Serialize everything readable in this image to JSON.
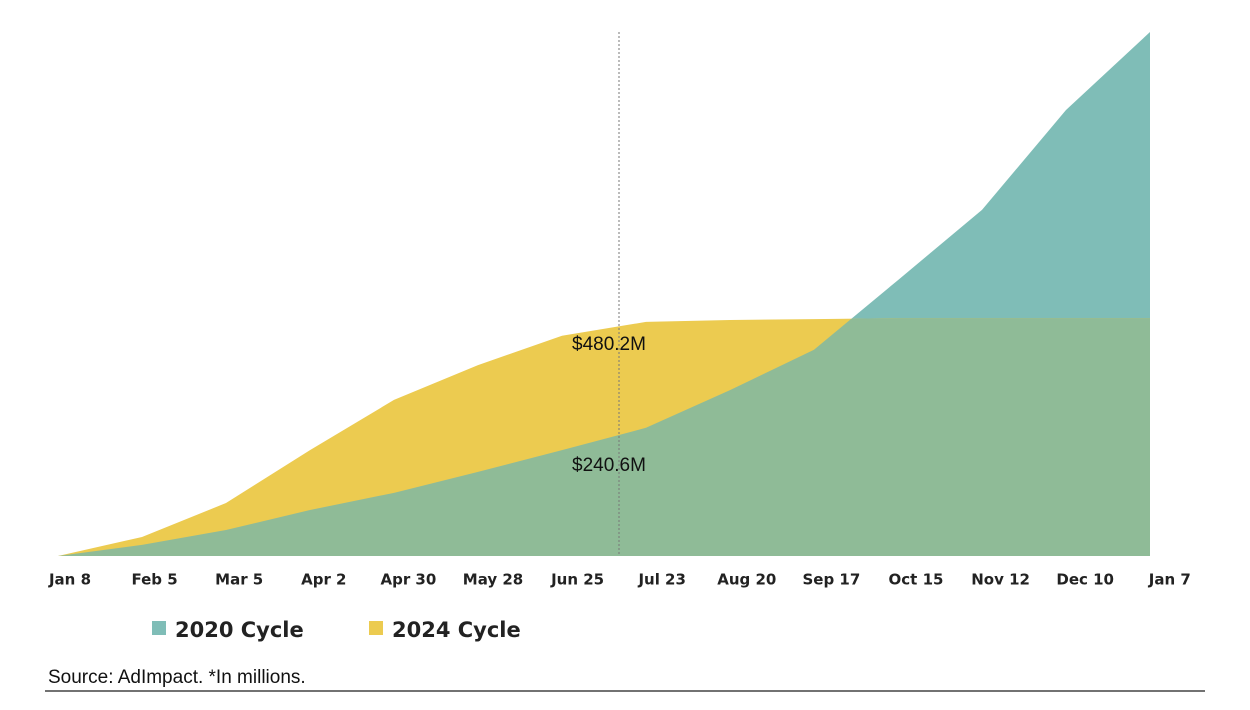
{
  "chart_data": {
    "type": "area",
    "categories": [
      "Jan 8",
      "Feb 5",
      "Mar 5",
      "Apr 2",
      "Apr 30",
      "May 28",
      "Jun 25",
      "Jul 23",
      "Aug 20",
      "Sep 17",
      "Oct 15",
      "Nov 12",
      "Dec 10",
      "Jan 7"
    ],
    "series": [
      {
        "name": "2020 Cycle",
        "color": "#7fbdb7",
        "values": [
          0,
          24,
          56,
          99,
          136,
          181,
          228,
          276,
          357,
          444,
          594,
          745,
          960,
          1128
        ]
      },
      {
        "name": "2024 Cycle",
        "color": "#eccb50",
        "values": [
          0,
          41,
          114,
          228,
          336,
          411,
          474,
          504,
          508,
          510,
          512,
          512,
          512,
          512
        ]
      }
    ],
    "overlap_color": "#8fbb97",
    "ylim": [
      0,
      1128
    ],
    "annotations": [
      "$480.2M",
      "$240.6M"
    ],
    "source": "Source: AdImpact. *In millions."
  }
}
